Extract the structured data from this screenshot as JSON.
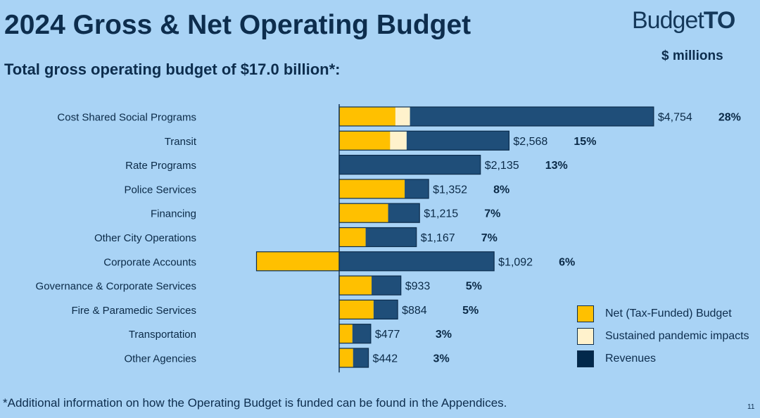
{
  "header": {
    "title": "2024 Gross & Net Operating Budget",
    "subtitle": "Total gross operating budget of $17.0 billion*:",
    "logo_text_light": "Budget",
    "logo_text_bold": "TO",
    "units": "$ millions"
  },
  "footer": {
    "footnote": "*Additional information on how the Operating Budget is funded can be found in the Appendices.",
    "page_number": "11"
  },
  "colors": {
    "net": "#ffc000",
    "pandemic": "#fff2cc",
    "revenues": "#1f4e79",
    "border": "#0d2d4d"
  },
  "chart_data": {
    "type": "bar",
    "orientation": "horizontal",
    "stacked": true,
    "units": "$ millions",
    "categories": [
      "Cost Shared Social Programs",
      "Transit",
      "Rate Programs",
      "Police Services",
      "Financing",
      "Other City Operations",
      "Corporate Accounts",
      "Governance & Corporate Services",
      "Fire & Paramedic Services",
      "Transportation",
      "Other Agencies"
    ],
    "totals": [
      4754,
      2568,
      2135,
      1352,
      1215,
      1167,
      1092,
      933,
      884,
      477,
      442
    ],
    "total_labels": [
      "$4,754",
      "$2,568",
      "$2,135",
      "$1,352",
      "$1,215",
      "$1,167",
      "$1,092",
      "$933",
      "$884",
      "$477",
      "$442"
    ],
    "percent_labels": [
      "28%",
      "15%",
      "13%",
      "8%",
      "7%",
      "7%",
      "6%",
      "5%",
      "5%",
      "3%",
      "3%"
    ],
    "series": [
      {
        "name": "Net (Tax-Funded) Budget",
        "color": "#ffc000",
        "values": [
          850,
          770,
          0,
          990,
          740,
          400,
          -1250,
          490,
          520,
          200,
          210
        ]
      },
      {
        "name": "Sustained pandemic impacts",
        "color": "#fff2cc",
        "values": [
          220,
          250,
          0,
          0,
          0,
          0,
          0,
          0,
          0,
          0,
          0
        ]
      },
      {
        "name": "Revenues",
        "color": "#1f4e79",
        "values": [
          3684,
          1548,
          2135,
          362,
          475,
          767,
          2342,
          443,
          364,
          277,
          232
        ]
      }
    ],
    "xlim": [
      -1250,
      4754
    ],
    "legend_position": "bottom-right"
  }
}
